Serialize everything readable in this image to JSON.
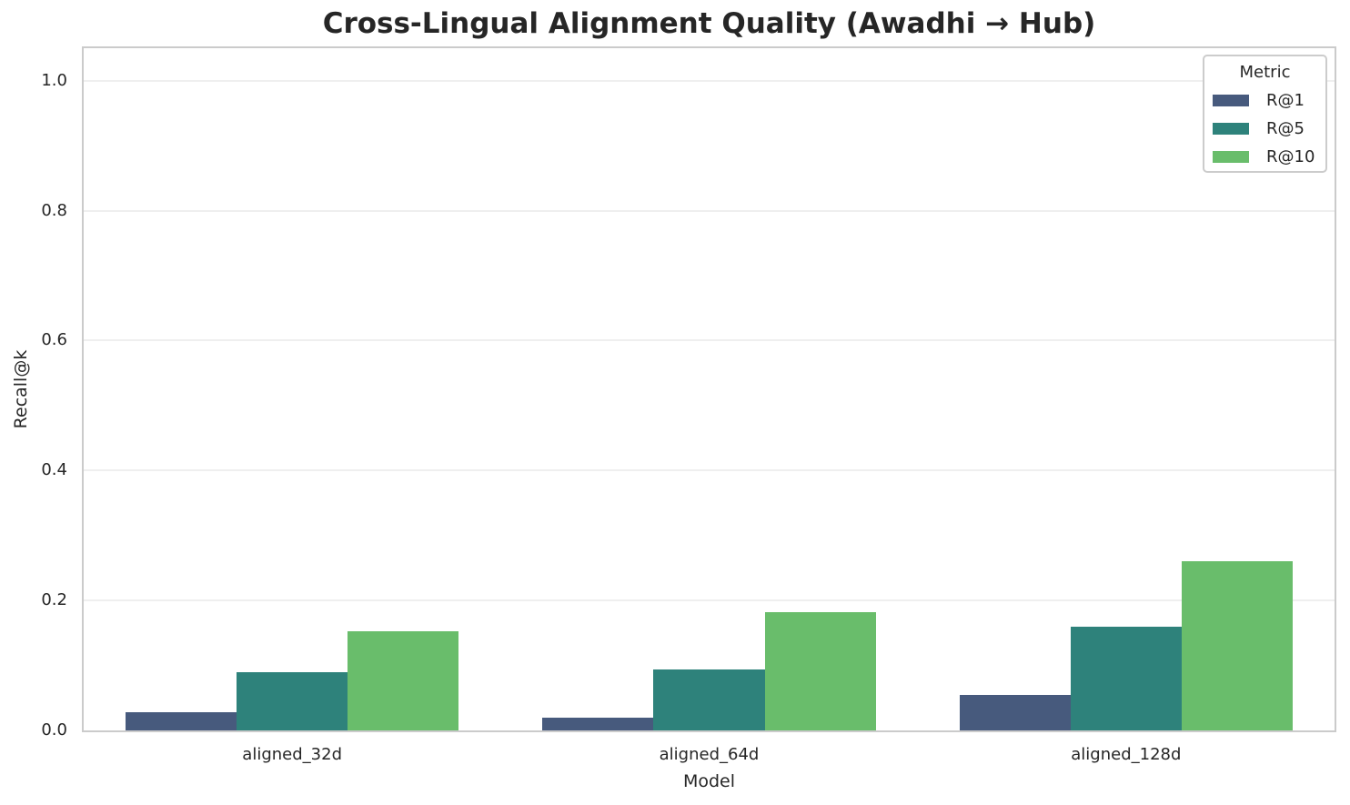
{
  "title": "Cross-Lingual Alignment Quality (Awadhi → Hub)",
  "chart_data": {
    "type": "bar",
    "title": "Cross-Lingual Alignment Quality (Awadhi → Hub)",
    "categories": [
      "aligned_32d",
      "aligned_64d",
      "aligned_128d"
    ],
    "series": [
      {
        "name": "R@1",
        "color": "#475a7d",
        "values": [
          0.028,
          0.02,
          0.055
        ]
      },
      {
        "name": "R@5",
        "color": "#2e827b",
        "values": [
          0.09,
          0.094,
          0.16
        ]
      },
      {
        "name": "R@10",
        "color": "#69bd6b",
        "values": [
          0.152,
          0.182,
          0.26
        ]
      }
    ],
    "xlabel": "Model",
    "ylabel": "Recall@k",
    "ylim": [
      0,
      1.05
    ],
    "yticks": [
      "0.0",
      "0.2",
      "0.4",
      "0.6",
      "0.8",
      "1.0"
    ],
    "grid": true,
    "legend": {
      "title": "Metric",
      "position": "upper right"
    }
  },
  "colors": {
    "text": "#262626",
    "spine": "#cbcbcb",
    "gridline": "#efefef",
    "background": "#ffffff"
  }
}
